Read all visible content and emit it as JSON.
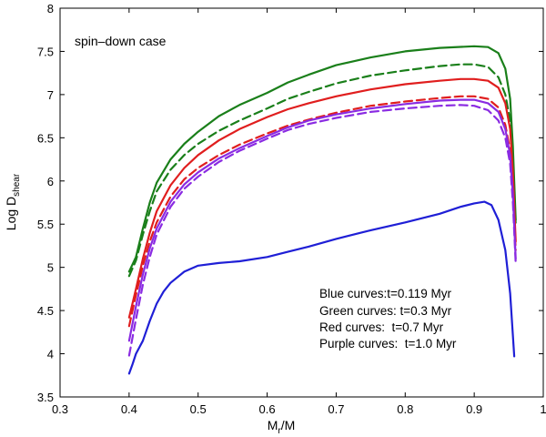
{
  "chart_data": {
    "type": "line",
    "title": "",
    "annotation": "spin–down case",
    "xlabel": {
      "main": "M",
      "sub": "r",
      "tail": "/M"
    },
    "ylabel": {
      "main": "Log D",
      "sub": "shear"
    },
    "xlim": [
      0.3,
      1.0
    ],
    "ylim": [
      3.5,
      8.0
    ],
    "xticks": [
      0.3,
      0.4,
      0.5,
      0.6,
      0.7,
      0.8,
      0.9,
      1.0
    ],
    "xtick_labels": [
      "0.3",
      "0.4",
      "0.5",
      "0.6",
      "0.7",
      "0.8",
      "0.9",
      "1"
    ],
    "yticks": [
      3.5,
      4.0,
      4.5,
      5.0,
      5.5,
      6.0,
      6.5,
      7.0,
      7.5,
      8.0
    ],
    "ytick_labels": [
      "3.5",
      "4",
      "4.5",
      "5",
      "5.5",
      "6",
      "6.5",
      "7",
      "7.5",
      "8"
    ],
    "grid": false,
    "legend_lines": [
      "Blue curves:t=0.119 Myr",
      "Green curves: t=0.3 Myr",
      "Red curves:  t=0.7 Myr",
      "Purple curves:  t=1.0 Myr"
    ],
    "colors": {
      "blue": "#1f1fd6",
      "green": "#1a7f1a",
      "red": "#e01e1e",
      "purple": "#8a2be2"
    },
    "series": [
      {
        "color": "#1a7f1a",
        "dash": "solid",
        "x": [
          0.4,
          0.41,
          0.42,
          0.43,
          0.44,
          0.46,
          0.48,
          0.5,
          0.53,
          0.56,
          0.6,
          0.63,
          0.66,
          0.7,
          0.75,
          0.8,
          0.85,
          0.9,
          0.92,
          0.935,
          0.945,
          0.952,
          0.956,
          0.96
        ],
        "y": [
          4.95,
          5.12,
          5.45,
          5.75,
          5.98,
          6.25,
          6.43,
          6.57,
          6.75,
          6.88,
          7.02,
          7.14,
          7.23,
          7.34,
          7.43,
          7.5,
          7.54,
          7.56,
          7.55,
          7.48,
          7.3,
          6.95,
          6.4,
          5.55
        ]
      },
      {
        "color": "#1a7f1a",
        "dash": "dashed",
        "x": [
          0.4,
          0.41,
          0.42,
          0.43,
          0.44,
          0.46,
          0.48,
          0.5,
          0.53,
          0.56,
          0.6,
          0.63,
          0.66,
          0.7,
          0.75,
          0.8,
          0.85,
          0.88,
          0.9,
          0.92,
          0.935,
          0.945,
          0.952,
          0.956,
          0.96
        ],
        "y": [
          4.9,
          5.08,
          5.38,
          5.65,
          5.88,
          6.13,
          6.3,
          6.43,
          6.58,
          6.7,
          6.84,
          6.95,
          7.03,
          7.13,
          7.22,
          7.28,
          7.33,
          7.35,
          7.35,
          7.32,
          7.2,
          7.0,
          6.7,
          6.2,
          5.5
        ]
      },
      {
        "color": "#e01e1e",
        "dash": "solid",
        "x": [
          0.4,
          0.41,
          0.42,
          0.43,
          0.44,
          0.46,
          0.48,
          0.5,
          0.53,
          0.56,
          0.6,
          0.63,
          0.66,
          0.7,
          0.75,
          0.8,
          0.85,
          0.88,
          0.9,
          0.92,
          0.935,
          0.945,
          0.952,
          0.956,
          0.96
        ],
        "y": [
          4.42,
          4.75,
          5.1,
          5.4,
          5.65,
          5.95,
          6.15,
          6.3,
          6.47,
          6.6,
          6.74,
          6.83,
          6.9,
          6.98,
          7.06,
          7.12,
          7.16,
          7.18,
          7.18,
          7.16,
          7.08,
          6.9,
          6.6,
          6.1,
          5.3
        ]
      },
      {
        "color": "#e01e1e",
        "dash": "dashed",
        "x": [
          0.4,
          0.41,
          0.42,
          0.43,
          0.44,
          0.46,
          0.48,
          0.5,
          0.53,
          0.56,
          0.6,
          0.63,
          0.66,
          0.7,
          0.75,
          0.8,
          0.85,
          0.88,
          0.9,
          0.92,
          0.935,
          0.945,
          0.952,
          0.956,
          0.96
        ],
        "y": [
          4.32,
          4.68,
          5.02,
          5.3,
          5.52,
          5.82,
          6.02,
          6.15,
          6.3,
          6.42,
          6.55,
          6.64,
          6.71,
          6.79,
          6.87,
          6.92,
          6.96,
          6.98,
          6.98,
          6.95,
          6.85,
          6.65,
          6.35,
          5.9,
          5.2
        ]
      },
      {
        "color": "#8a2be2",
        "dash": "solid",
        "x": [
          0.4,
          0.41,
          0.42,
          0.43,
          0.44,
          0.46,
          0.48,
          0.5,
          0.53,
          0.56,
          0.6,
          0.63,
          0.66,
          0.7,
          0.75,
          0.8,
          0.85,
          0.88,
          0.9,
          0.92,
          0.935,
          0.945,
          0.952,
          0.956,
          0.96
        ],
        "y": [
          4.15,
          4.55,
          4.92,
          5.22,
          5.45,
          5.76,
          5.96,
          6.1,
          6.26,
          6.38,
          6.52,
          6.62,
          6.7,
          6.77,
          6.84,
          6.89,
          6.93,
          6.94,
          6.94,
          6.9,
          6.8,
          6.6,
          6.3,
          5.85,
          5.1
        ]
      },
      {
        "color": "#8a2be2",
        "dash": "dashed",
        "x": [
          0.4,
          0.41,
          0.42,
          0.43,
          0.44,
          0.46,
          0.48,
          0.5,
          0.53,
          0.56,
          0.6,
          0.63,
          0.66,
          0.7,
          0.75,
          0.8,
          0.85,
          0.88,
          0.9,
          0.92,
          0.935,
          0.945,
          0.952,
          0.956,
          0.96
        ],
        "y": [
          3.98,
          4.4,
          4.8,
          5.12,
          5.38,
          5.7,
          5.91,
          6.05,
          6.22,
          6.35,
          6.49,
          6.59,
          6.66,
          6.73,
          6.8,
          6.84,
          6.87,
          6.88,
          6.87,
          6.82,
          6.7,
          6.5,
          6.2,
          5.75,
          5.05
        ]
      },
      {
        "color": "#1f1fd6",
        "dash": "solid",
        "x": [
          0.4,
          0.405,
          0.41,
          0.42,
          0.43,
          0.44,
          0.45,
          0.46,
          0.48,
          0.5,
          0.53,
          0.56,
          0.6,
          0.63,
          0.66,
          0.7,
          0.75,
          0.8,
          0.85,
          0.88,
          0.9,
          0.915,
          0.925,
          0.935,
          0.945,
          0.952,
          0.958
        ],
        "y": [
          3.77,
          3.88,
          4.0,
          4.15,
          4.38,
          4.58,
          4.72,
          4.82,
          4.95,
          5.02,
          5.05,
          5.07,
          5.12,
          5.18,
          5.24,
          5.33,
          5.43,
          5.52,
          5.62,
          5.7,
          5.74,
          5.76,
          5.72,
          5.55,
          5.2,
          4.7,
          3.97
        ]
      }
    ]
  }
}
